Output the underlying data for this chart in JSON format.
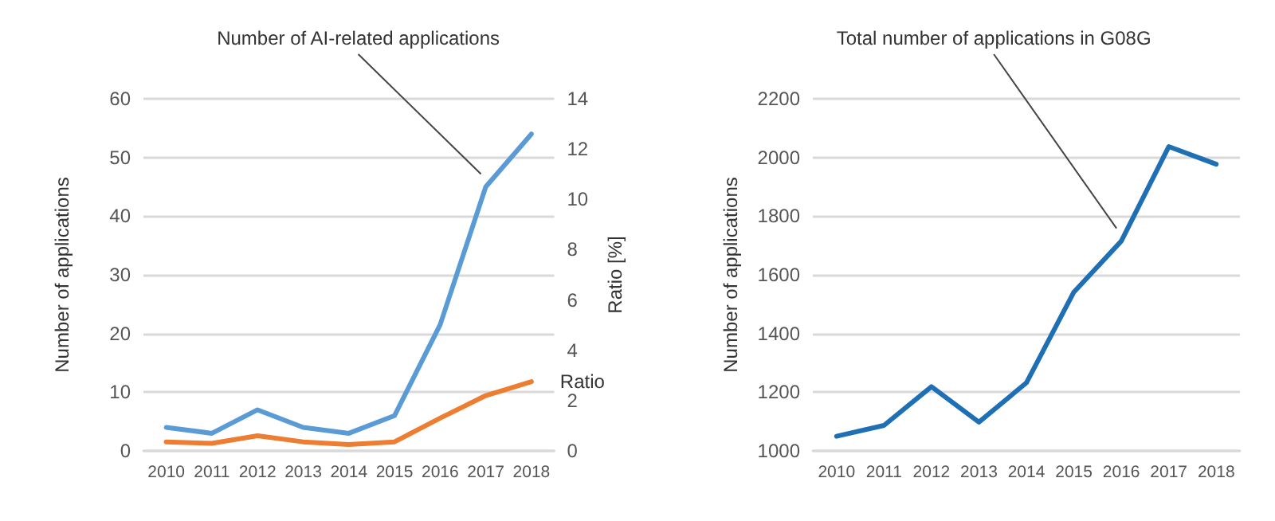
{
  "chart_data": [
    {
      "type": "line",
      "categories": [
        "2010",
        "2011",
        "2012",
        "2013",
        "2014",
        "2015",
        "2016",
        "2017",
        "2018"
      ],
      "ylabel": "Number of applications",
      "y2label": "Ratio [%]",
      "ylim": [
        0,
        60
      ],
      "yticks": [
        0,
        10,
        20,
        30,
        40,
        50,
        60
      ],
      "y2lim": [
        0,
        14
      ],
      "y2ticks": [
        0,
        2,
        4,
        6,
        8,
        10,
        12,
        14
      ],
      "grid": "y",
      "legend": false,
      "marker": "none",
      "annotations": [
        {
          "text": "Number of AI-related applications",
          "x": "2017",
          "y": 45
        }
      ],
      "series": [
        {
          "color": "#5b9bd5",
          "values": [
            4,
            3,
            7,
            4,
            3,
            6,
            21.5,
            45,
            54
          ]
        },
        {
          "name": "Ratio",
          "color": "#ed7d31",
          "axis": "y2",
          "values": [
            0.36,
            0.3,
            0.6,
            0.36,
            0.25,
            0.36,
            1.3,
            2.2,
            2.75
          ]
        }
      ]
    },
    {
      "type": "line",
      "categories": [
        "2010",
        "2011",
        "2012",
        "2013",
        "2014",
        "2015",
        "2016",
        "2017",
        "2018"
      ],
      "ylabel": "Number of applications",
      "ylim": [
        1000,
        2200
      ],
      "yticks": [
        1000,
        1200,
        1400,
        1600,
        1800,
        2000,
        2200
      ],
      "grid": "y",
      "legend": false,
      "marker": "none",
      "annotations": [
        {
          "text": "Total number of applications in G08G",
          "x": "2016",
          "y": 1715
        }
      ],
      "series": [
        {
          "color": "#1f6fb5",
          "values": [
            1050,
            1087,
            1219,
            1098,
            1232,
            1541,
            1715,
            2037,
            1977
          ]
        }
      ]
    }
  ]
}
